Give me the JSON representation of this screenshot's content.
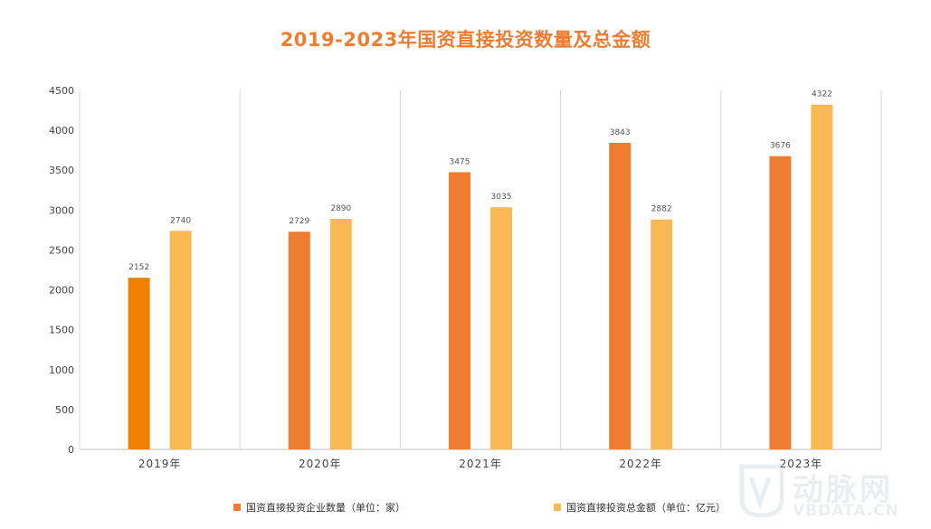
{
  "chart_data": {
    "type": "bar",
    "title": "2019-2023年国资直接投资数量及总金额",
    "categories": [
      "2019年",
      "2020年",
      "2021年",
      "2022年",
      "2023年"
    ],
    "series": [
      {
        "name": "国资直接投资企业数量（单位：家）",
        "values": [
          2152,
          2729,
          3475,
          3843,
          3676
        ],
        "color": "#ee7d31",
        "first_color": "#f08000"
      },
      {
        "name": "国资直接投资总金额（单位：亿元）",
        "values": [
          2740,
          2890,
          3035,
          2882,
          4322
        ],
        "color": "#f8b955"
      }
    ],
    "ylim": [
      0,
      4500
    ],
    "yticks": [
      0,
      500,
      1000,
      1500,
      2000,
      2500,
      3000,
      3500,
      4000,
      4500
    ],
    "grid": "vertical-category-separators",
    "legend": "bottom",
    "xlabel": "",
    "ylabel": ""
  },
  "watermark": {
    "text_cn": "动脉网",
    "text_en": "VBDATA.CN"
  }
}
